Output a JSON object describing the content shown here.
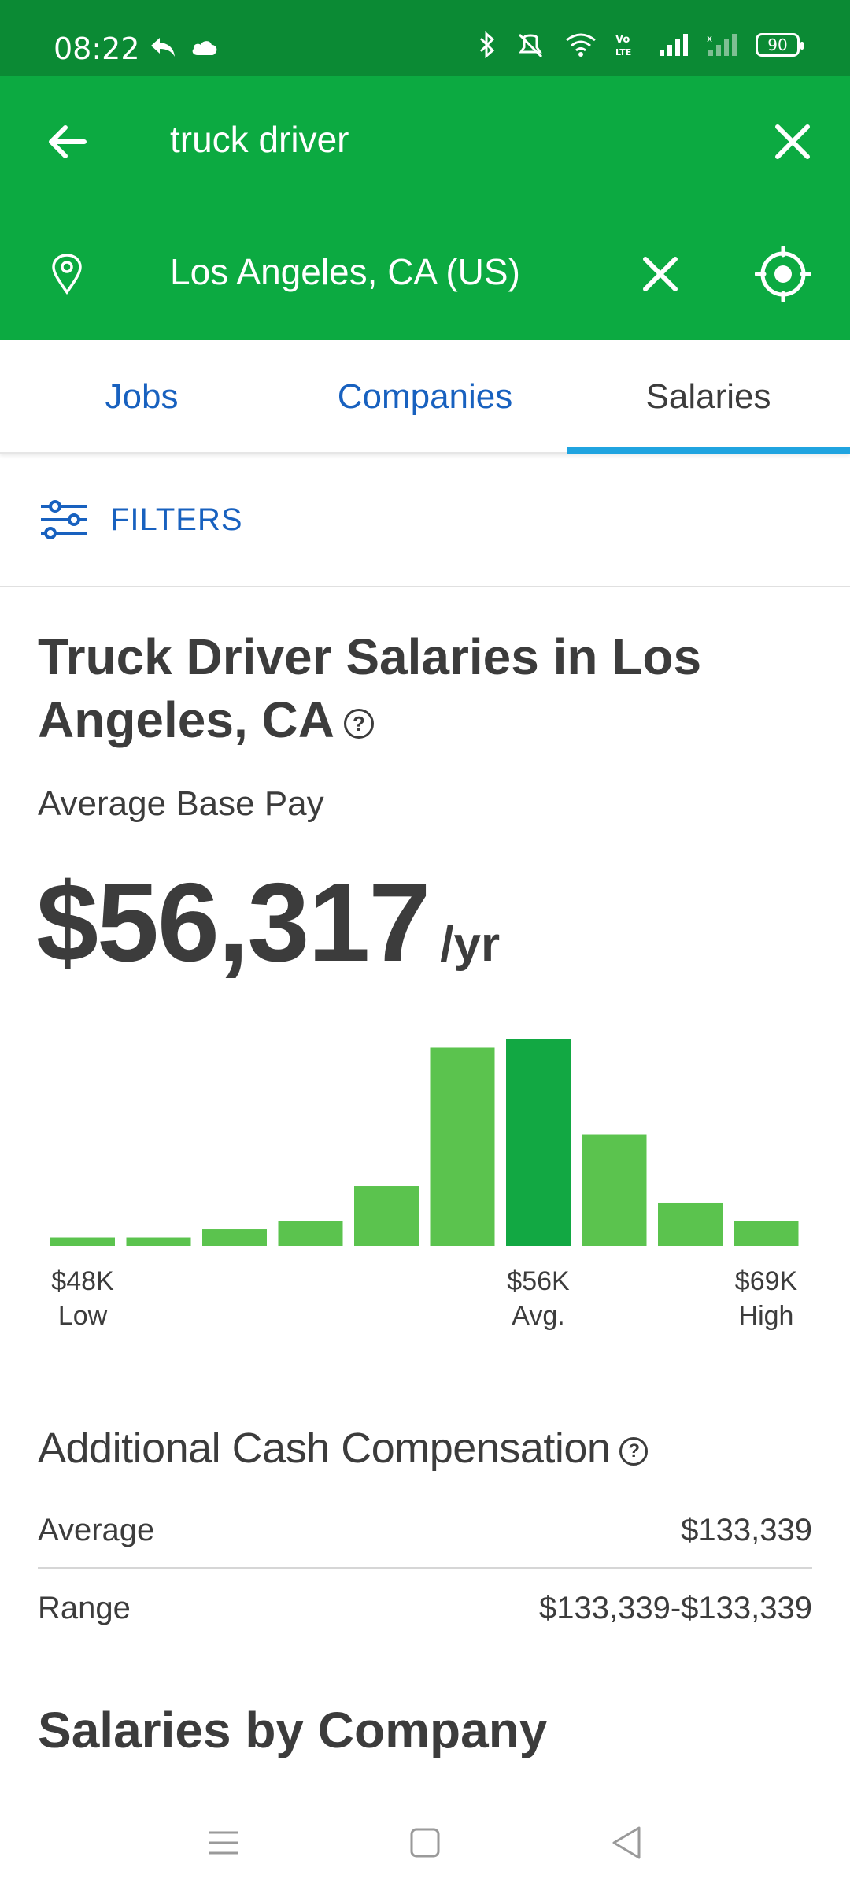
{
  "status_bar": {
    "time": "08:22",
    "battery": "90"
  },
  "search": {
    "query": "truck driver",
    "location": "Los Angeles, CA (US)"
  },
  "tabs": [
    {
      "label": "Jobs"
    },
    {
      "label": "Companies"
    },
    {
      "label": "Salaries",
      "active": true
    }
  ],
  "filters": {
    "label": "FILTERS"
  },
  "salary": {
    "title": "Truck Driver Salaries in Los Angeles, CA",
    "subtitle": "Average Base Pay",
    "amount": "$56,317",
    "unit": "/yr"
  },
  "chart_data": {
    "type": "bar",
    "categories": [
      "1",
      "2",
      "3",
      "4",
      "5",
      "6",
      "7",
      "8",
      "9",
      "10"
    ],
    "values": [
      4,
      4,
      8,
      12,
      29,
      96,
      100,
      54,
      21,
      12
    ],
    "highlight_index": 6,
    "colors": {
      "bar": "#5bc34e",
      "highlight": "#12a843"
    },
    "ylim": [
      0,
      100
    ],
    "labels": [
      {
        "index": 0,
        "value": "$48K",
        "caption": "Low"
      },
      {
        "index": 6,
        "value": "$56K",
        "caption": "Avg."
      },
      {
        "index": 9,
        "value": "$69K",
        "caption": "High"
      }
    ]
  },
  "additional_comp": {
    "title": "Additional Cash Compensation",
    "rows": [
      {
        "label": "Average",
        "value": "$133,339"
      },
      {
        "label": "Range",
        "value": "$133,339-$133,339"
      }
    ]
  },
  "by_company": {
    "title": "Salaries by Company"
  },
  "colors": {
    "header_green": "#0caa41",
    "status_green": "#0b8a34",
    "link_blue": "#1861bf",
    "tab_indicator": "#20a4e0"
  }
}
